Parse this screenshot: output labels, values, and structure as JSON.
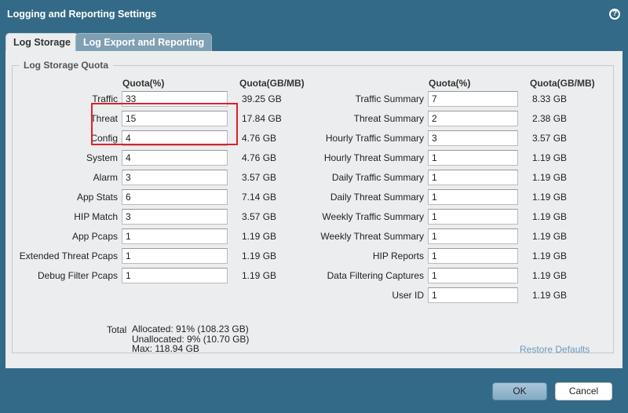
{
  "dialog": {
    "title": "Logging and Reporting Settings",
    "help_icon": "help-icon"
  },
  "tabs": [
    {
      "label": "Log Storage",
      "active": true
    },
    {
      "label": "Log Export and Reporting",
      "active": false
    }
  ],
  "section": {
    "legend": "Log Storage Quota",
    "headers": {
      "quota_pct": "Quota(%)",
      "quota_size": "Quota(GB/MB)"
    },
    "left": [
      {
        "label": "Traffic",
        "value": "33",
        "size": "39.25 GB"
      },
      {
        "label": "Threat",
        "value": "15",
        "size": "17.84 GB"
      },
      {
        "label": "Config",
        "value": "4",
        "size": "4.76 GB"
      },
      {
        "label": "System",
        "value": "4",
        "size": "4.76 GB"
      },
      {
        "label": "Alarm",
        "value": "3",
        "size": "3.57 GB"
      },
      {
        "label": "App Stats",
        "value": "6",
        "size": "7.14 GB"
      },
      {
        "label": "HIP Match",
        "value": "3",
        "size": "3.57 GB"
      },
      {
        "label": "App Pcaps",
        "value": "1",
        "size": "1.19 GB"
      },
      {
        "label": "Extended Threat Pcaps",
        "value": "1",
        "size": "1.19 GB"
      },
      {
        "label": "Debug Filter Pcaps",
        "value": "1",
        "size": "1.19 GB"
      }
    ],
    "right": [
      {
        "label": "Traffic Summary",
        "value": "7",
        "size": "8.33 GB"
      },
      {
        "label": "Threat Summary",
        "value": "2",
        "size": "2.38 GB"
      },
      {
        "label": "Hourly Traffic Summary",
        "value": "3",
        "size": "3.57 GB"
      },
      {
        "label": "Hourly Threat Summary",
        "value": "1",
        "size": "1.19 GB"
      },
      {
        "label": "Daily Traffic Summary",
        "value": "1",
        "size": "1.19 GB"
      },
      {
        "label": "Daily Threat Summary",
        "value": "1",
        "size": "1.19 GB"
      },
      {
        "label": "Weekly Traffic Summary",
        "value": "1",
        "size": "1.19 GB"
      },
      {
        "label": "Weekly Threat Summary",
        "value": "1",
        "size": "1.19 GB"
      },
      {
        "label": "HIP Reports",
        "value": "1",
        "size": "1.19 GB"
      },
      {
        "label": "Data Filtering Captures",
        "value": "1",
        "size": "1.19 GB"
      },
      {
        "label": "User ID",
        "value": "1",
        "size": "1.19 GB"
      }
    ],
    "total": {
      "label": "Total",
      "allocated": "Allocated: 91% (108.23 GB)",
      "unallocated": "Unallocated: 9% (10.70 GB)",
      "max": "Max: 118.94 GB"
    },
    "restore_defaults": "Restore Defaults"
  },
  "buttons": {
    "ok": "OK",
    "cancel": "Cancel"
  },
  "colors": {
    "frame": "#336a87",
    "highlight": "#e0202a",
    "link": "#6a9bbd"
  }
}
